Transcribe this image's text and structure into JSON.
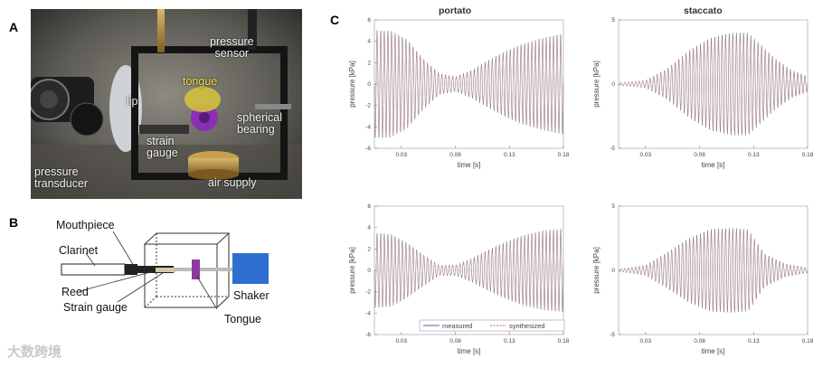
{
  "panels": {
    "a": "A",
    "b": "B",
    "c": "C"
  },
  "photo_labels": {
    "pressure_sensor": "pressure\nsensor",
    "tongue": "tongue",
    "lip": "lip",
    "spherical_bearing": "spherical\nbearing",
    "strain_gauge": "strain\ngauge",
    "pressure_transducer": "pressure\ntransducer",
    "air_supply": "air supply"
  },
  "diagram_labels": {
    "mouthpiece": "Mouthpiece",
    "clarinet": "Clarinet",
    "reed": "Reed",
    "strain_gauge": "Strain gauge",
    "shaker": "Shaker",
    "tongue": "Tongue"
  },
  "column_titles": [
    "portato",
    "staccato"
  ],
  "legend": {
    "measured": "measured",
    "synthesized": "synthesized"
  },
  "colors": {
    "measured": "#4a67b5",
    "synthesized": "#d9703a",
    "shaker": "#2e6fcf",
    "tongue": "#8c3aa0"
  },
  "watermark": "大数跨境",
  "chart_data": [
    {
      "type": "line",
      "id": "portato-top",
      "title": "portato",
      "xlabel": "time [s]",
      "ylabel": "pressure [kPa]",
      "xlim": [
        0.005,
        0.18
      ],
      "ylim": [
        -6,
        6
      ],
      "xticks": [
        0.03,
        0.08,
        0.13,
        0.18
      ],
      "yticks": [
        -6,
        -4,
        -2,
        0,
        2,
        4,
        6
      ],
      "freq_hz": 150,
      "envelope": {
        "t": [
          0.005,
          0.02,
          0.035,
          0.05,
          0.065,
          0.08,
          0.095,
          0.11,
          0.125,
          0.14,
          0.16,
          0.18
        ],
        "amp": [
          5.0,
          5.0,
          4.2,
          2.4,
          1.0,
          0.7,
          1.3,
          2.2,
          3.0,
          3.7,
          4.3,
          4.7
        ]
      },
      "series": [
        {
          "name": "measured"
        },
        {
          "name": "synthesized"
        }
      ]
    },
    {
      "type": "line",
      "id": "staccato-top",
      "title": "staccato",
      "xlabel": "time [s]",
      "ylabel": "pressure [kPa]",
      "xlim": [
        0.005,
        0.18
      ],
      "ylim": [
        -5,
        5
      ],
      "xticks": [
        0.03,
        0.08,
        0.13,
        0.18
      ],
      "yticks": [
        -5,
        0,
        5
      ],
      "freq_hz": 150,
      "envelope": {
        "t": [
          0.005,
          0.03,
          0.05,
          0.07,
          0.09,
          0.11,
          0.125,
          0.135,
          0.15,
          0.165,
          0.18
        ],
        "amp": [
          0.1,
          0.3,
          1.2,
          2.6,
          3.6,
          4.0,
          4.0,
          3.2,
          2.0,
          1.1,
          0.6
        ]
      },
      "series": [
        {
          "name": "measured"
        },
        {
          "name": "synthesized"
        }
      ]
    },
    {
      "type": "line",
      "id": "portato-bottom",
      "title": "",
      "xlabel": "time [s]",
      "ylabel": "pressure [kPa]",
      "xlim": [
        0.005,
        0.18
      ],
      "ylim": [
        -6,
        6
      ],
      "xticks": [
        0.03,
        0.08,
        0.13,
        0.18
      ],
      "yticks": [
        -6,
        -4,
        -2,
        0,
        2,
        4,
        6
      ],
      "freq_hz": 150,
      "envelope": {
        "t": [
          0.005,
          0.02,
          0.035,
          0.05,
          0.065,
          0.08,
          0.095,
          0.11,
          0.125,
          0.14,
          0.16,
          0.18
        ],
        "amp": [
          3.5,
          3.4,
          2.6,
          1.5,
          0.5,
          0.5,
          1.1,
          1.9,
          2.6,
          3.2,
          3.7,
          3.9
        ]
      },
      "series": [
        {
          "name": "measured"
        },
        {
          "name": "synthesized"
        }
      ],
      "legend": "bottom-center"
    },
    {
      "type": "line",
      "id": "staccato-bottom",
      "title": "",
      "xlabel": "time [s]",
      "ylabel": "pressure [kPa]",
      "xlim": [
        0.005,
        0.18
      ],
      "ylim": [
        -5,
        5
      ],
      "xticks": [
        0.03,
        0.08,
        0.13,
        0.18
      ],
      "yticks": [
        -5,
        0,
        5
      ],
      "freq_hz": 150,
      "envelope": {
        "t": [
          0.005,
          0.03,
          0.05,
          0.07,
          0.09,
          0.11,
          0.125,
          0.14,
          0.16,
          0.18
        ],
        "amp": [
          0.1,
          0.4,
          1.4,
          2.5,
          3.2,
          3.3,
          3.2,
          1.3,
          0.5,
          0.2
        ]
      },
      "series": [
        {
          "name": "measured"
        },
        {
          "name": "synthesized"
        }
      ]
    }
  ]
}
